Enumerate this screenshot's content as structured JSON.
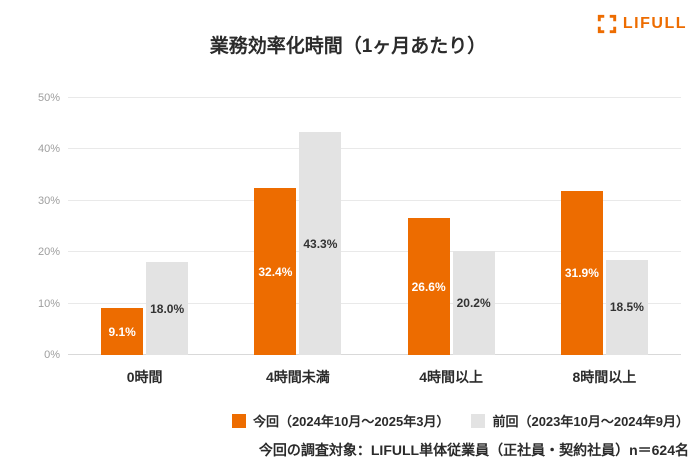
{
  "logo": {
    "text": "LIFULL",
    "brand_color": "#ED6C00"
  },
  "chart_data": {
    "type": "bar",
    "title": "業務効率化時間（1ヶ月あたり）",
    "categories": [
      "0時間",
      "4時間未満",
      "4時間以上",
      "8時間以上"
    ],
    "series": [
      {
        "name": "今回（2024年10月〜2025年3月）",
        "values": [
          9.1,
          32.4,
          26.6,
          31.9
        ],
        "color": "#ED6C00",
        "label_color": "#FFFFFF"
      },
      {
        "name": "前回（2023年10月〜2024年9月）",
        "values": [
          18.0,
          43.3,
          20.2,
          18.5
        ],
        "color": "#E3E3E3",
        "label_color": "#333333"
      }
    ],
    "value_suffix": "%",
    "xlabel": "",
    "ylabel": "",
    "ylim": [
      0,
      50
    ],
    "yticks": [
      0,
      10,
      20,
      30,
      40,
      50
    ],
    "ytick_suffix": "%",
    "grid": true,
    "legend_position": "bottom-right"
  },
  "footer": {
    "note": "今回の調査対象：LIFULL単体従業員（正社員・契約社員）n＝624名"
  }
}
